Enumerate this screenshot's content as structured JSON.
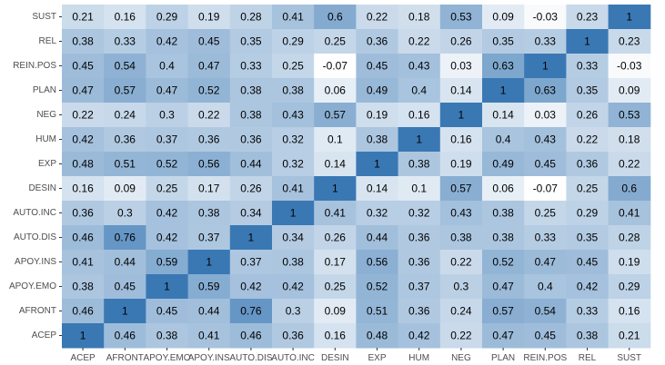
{
  "chart_data": {
    "type": "heatmap",
    "title": "",
    "xlabel": "",
    "ylabel": "",
    "variables": [
      "ACEP",
      "AFRONT",
      "APOY.EMO",
      "APOY.INS",
      "AUTO.DIS",
      "AUTO.INC",
      "DESIN",
      "EXP",
      "HUM",
      "NEG",
      "PLAN",
      "REIN.POS",
      "REL",
      "SUST"
    ],
    "x_categories": [
      "ACEP",
      "AFRONT",
      "APOY.EMO",
      "APOY.INS",
      "AUTO.DIS",
      "AUTO.INC",
      "DESIN",
      "EXP",
      "HUM",
      "NEG",
      "PLAN",
      "REIN.POS",
      "REL",
      "SUST"
    ],
    "y_categories_top_to_bottom": [
      "SUST",
      "REL",
      "REIN.POS",
      "PLAN",
      "NEG",
      "HUM",
      "EXP",
      "DESIN",
      "AUTO.INC",
      "AUTO.DIS",
      "APOY.INS",
      "APOY.EMO",
      "AFRONT",
      "ACEP"
    ],
    "matrix": [
      [
        1,
        0.46,
        0.38,
        0.41,
        0.46,
        0.36,
        0.16,
        0.48,
        0.42,
        0.22,
        0.47,
        0.45,
        0.38,
        0.21
      ],
      [
        0.46,
        1,
        0.45,
        0.44,
        0.76,
        0.3,
        0.09,
        0.51,
        0.36,
        0.24,
        0.57,
        0.54,
        0.33,
        0.16
      ],
      [
        0.38,
        0.45,
        1,
        0.59,
        0.42,
        0.42,
        0.25,
        0.52,
        0.37,
        0.3,
        0.47,
        0.4,
        0.42,
        0.29
      ],
      [
        0.41,
        0.44,
        0.59,
        1,
        0.37,
        0.38,
        0.17,
        0.56,
        0.36,
        0.22,
        0.52,
        0.47,
        0.45,
        0.19
      ],
      [
        0.46,
        0.76,
        0.42,
        0.37,
        1,
        0.34,
        0.26,
        0.44,
        0.36,
        0.38,
        0.38,
        0.33,
        0.35,
        0.28
      ],
      [
        0.36,
        0.3,
        0.42,
        0.38,
        0.34,
        1,
        0.41,
        0.32,
        0.32,
        0.43,
        0.38,
        0.25,
        0.29,
        0.41
      ],
      [
        0.16,
        0.09,
        0.25,
        0.17,
        0.26,
        0.41,
        1,
        0.14,
        0.1,
        0.57,
        0.06,
        -0.07,
        0.25,
        0.6
      ],
      [
        0.48,
        0.51,
        0.52,
        0.56,
        0.44,
        0.32,
        0.14,
        1,
        0.38,
        0.19,
        0.49,
        0.45,
        0.36,
        0.22
      ],
      [
        0.42,
        0.36,
        0.37,
        0.36,
        0.36,
        0.32,
        0.1,
        0.38,
        1,
        0.16,
        0.4,
        0.43,
        0.22,
        0.18
      ],
      [
        0.22,
        0.24,
        0.3,
        0.22,
        0.38,
        0.43,
        0.57,
        0.19,
        0.16,
        1,
        0.14,
        0.03,
        0.26,
        0.53
      ],
      [
        0.47,
        0.57,
        0.47,
        0.52,
        0.38,
        0.38,
        0.06,
        0.49,
        0.4,
        0.14,
        1,
        0.63,
        0.35,
        0.09
      ],
      [
        0.45,
        0.54,
        0.4,
        0.47,
        0.33,
        0.25,
        -0.07,
        0.45,
        0.43,
        0.03,
        0.63,
        1,
        0.33,
        -0.03
      ],
      [
        0.38,
        0.33,
        0.42,
        0.45,
        0.35,
        0.29,
        0.25,
        0.36,
        0.22,
        0.26,
        0.35,
        0.33,
        1,
        0.23
      ],
      [
        0.21,
        0.16,
        0.29,
        0.19,
        0.28,
        0.41,
        0.6,
        0.22,
        0.18,
        0.53,
        0.09,
        -0.03,
        0.23,
        1
      ]
    ],
    "color_scale": {
      "low": "#ffffff",
      "high": "#3a78b4",
      "domain": [
        -0.07,
        1
      ]
    },
    "grid": false,
    "legend": "none"
  }
}
